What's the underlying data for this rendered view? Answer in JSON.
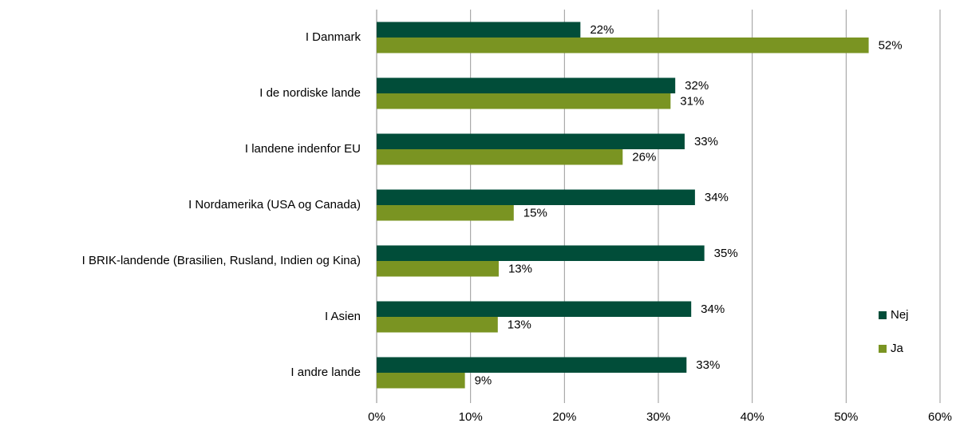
{
  "chart_data": {
    "type": "hbar",
    "categories": [
      "I Danmark",
      "I de nordiske lande",
      "I landene indenfor EU",
      "I Nordamerika (USA og Canada)",
      "I BRIK-landende (Brasilien, Rusland, Indien og Kina)",
      "I Asien",
      "I andre lande"
    ],
    "series": [
      {
        "name": "Nej",
        "color": "#014d39",
        "values": [
          21.7,
          31.8,
          32.8,
          33.9,
          34.9,
          33.5,
          33.0
        ],
        "value_labels": [
          "22%",
          "32%",
          "33%",
          "34%",
          "35%",
          "34%",
          "33%"
        ]
      },
      {
        "name": "Ja",
        "color": "#7a9422",
        "values": [
          52.4,
          31.3,
          26.2,
          14.6,
          13.0,
          12.9,
          9.4
        ],
        "value_labels": [
          "52%",
          "31%",
          "26%",
          "15%",
          "13%",
          "13%",
          "9%"
        ]
      }
    ],
    "xlim": [
      0,
      60
    ],
    "xticks": [
      {
        "value": 0,
        "label": "0%"
      },
      {
        "value": 10,
        "label": "10%"
      },
      {
        "value": 20,
        "label": "20%"
      },
      {
        "value": 30,
        "label": "30%"
      },
      {
        "value": 40,
        "label": "40%"
      },
      {
        "value": 50,
        "label": "50%"
      },
      {
        "value": 60,
        "label": "60%"
      }
    ],
    "grid": true,
    "legend": "right"
  }
}
